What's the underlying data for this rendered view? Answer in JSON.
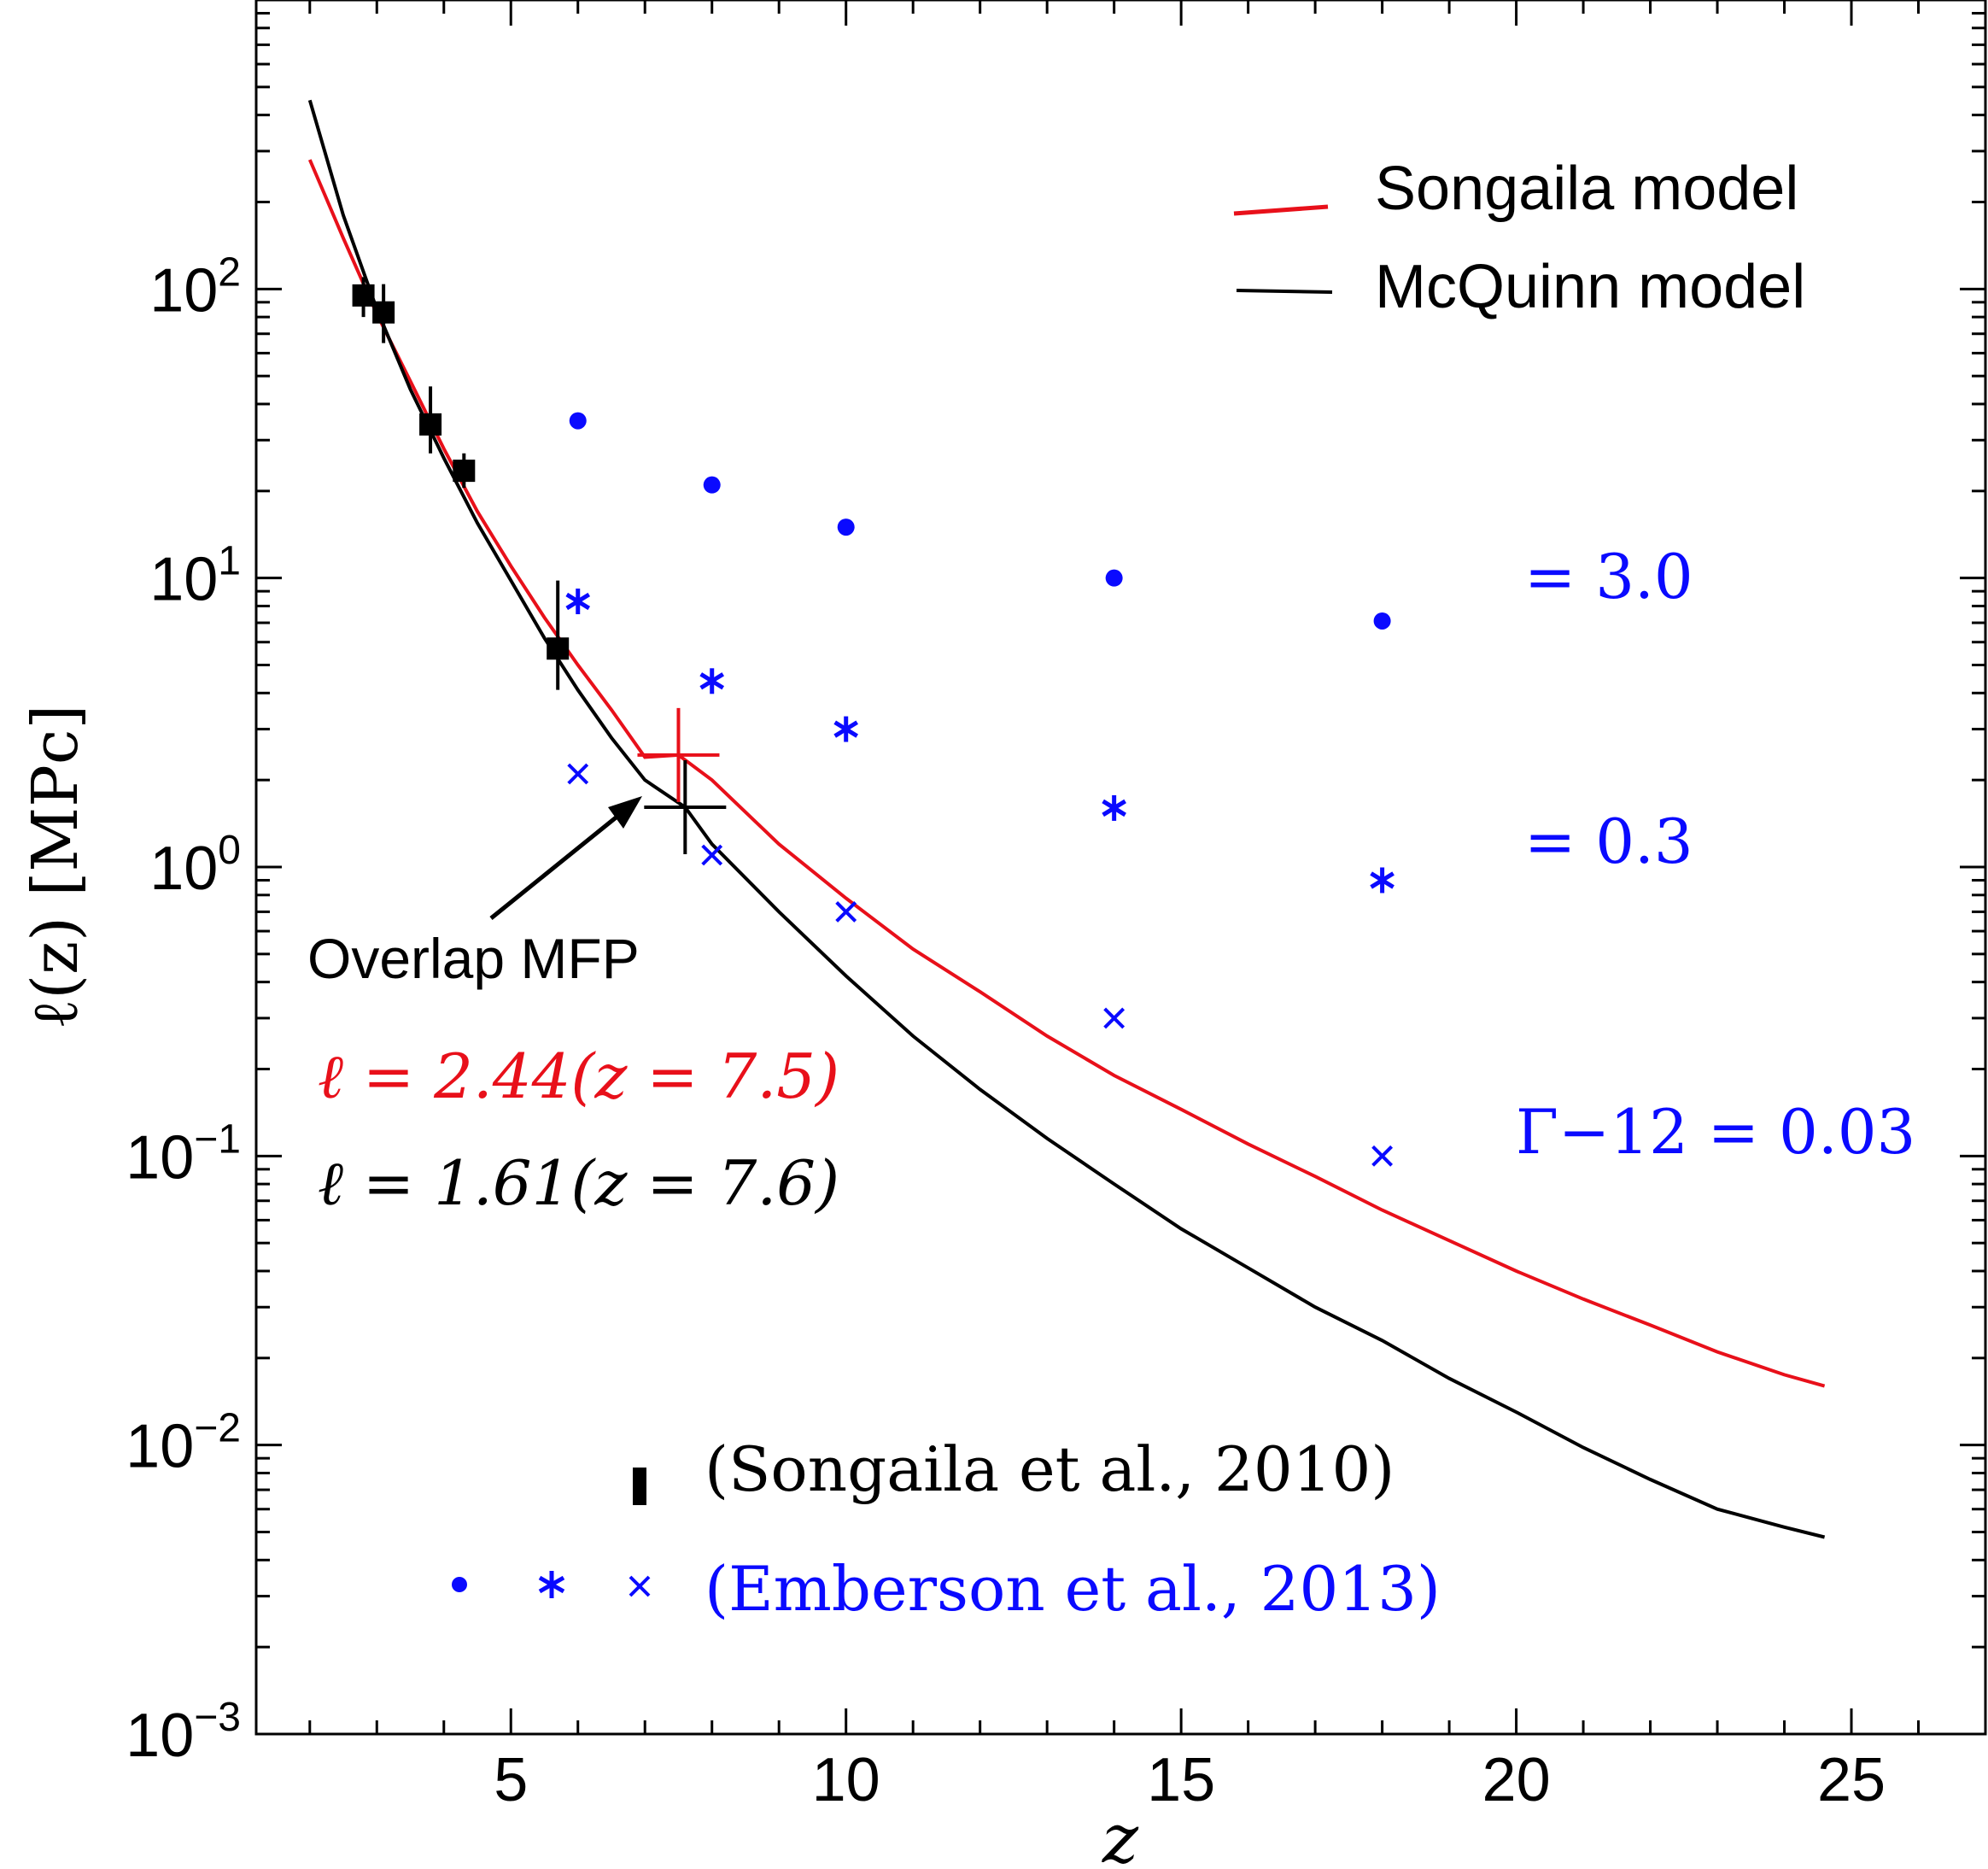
{
  "chart_data": {
    "type": "line",
    "xlabel": "z",
    "ylabel": "ℓ(z) [MPc]",
    "xlim": [
      1.2,
      27.0
    ],
    "ylim": [
      0.001,
      1000
    ],
    "yscale": "log",
    "xticks": [
      5,
      10,
      15,
      20,
      25
    ],
    "xtick_labels": [
      "5",
      "10",
      "15",
      "20",
      "25"
    ],
    "yticks": [
      0.001,
      0.01,
      0.1,
      1,
      10,
      100
    ],
    "ytick_labels": [
      {
        "base": "10",
        "exp": "−3"
      },
      {
        "base": "10",
        "exp": "−2"
      },
      {
        "base": "10",
        "exp": "−1"
      },
      {
        "base": "10",
        "exp": "0"
      },
      {
        "base": "10",
        "exp": "1"
      },
      {
        "base": "10",
        "exp": "2"
      }
    ],
    "series": [
      {
        "name": "Songaila model",
        "color": "#e8101a",
        "x": [
          2.0,
          2.5,
          3.0,
          3.5,
          4.0,
          4.5,
          5.0,
          5.5,
          6.0,
          6.5,
          7.0,
          7.5,
          8.0,
          9.0,
          10.0,
          11.0,
          12.0,
          13.0,
          14.0,
          15.0,
          16.0,
          17.0,
          18.0,
          19.0,
          20.0,
          21.0,
          22.0,
          23.0,
          24.0,
          24.6
        ],
        "y": [
          280,
          150,
          82,
          48,
          28,
          17,
          11,
          7.3,
          5.0,
          3.5,
          2.4,
          2.44,
          2.0,
          1.2,
          0.78,
          0.52,
          0.37,
          0.26,
          0.19,
          0.145,
          0.11,
          0.085,
          0.065,
          0.051,
          0.04,
          0.032,
          0.026,
          0.021,
          0.0175,
          0.016
        ]
      },
      {
        "name": "McQuinn model",
        "color": "#000000",
        "x": [
          2.0,
          2.5,
          3.0,
          3.5,
          4.0,
          4.5,
          5.0,
          5.5,
          6.0,
          6.5,
          7.0,
          7.6,
          8.0,
          9.0,
          10.0,
          11.0,
          12.0,
          13.0,
          14.0,
          15.0,
          16.0,
          17.0,
          18.0,
          19.0,
          20.0,
          21.0,
          22.0,
          23.0,
          24.0,
          24.6
        ],
        "y": [
          450,
          180,
          85,
          45,
          26,
          15.5,
          9.8,
          6.2,
          4.1,
          2.8,
          2.0,
          1.61,
          1.2,
          0.7,
          0.42,
          0.26,
          0.17,
          0.115,
          0.08,
          0.056,
          0.041,
          0.03,
          0.023,
          0.017,
          0.013,
          0.0098,
          0.0076,
          0.006,
          0.0052,
          0.0048
        ]
      }
    ],
    "songaila_points": {
      "label": "(Songaila et al., 2010)",
      "x": [
        2.8,
        3.1,
        3.8,
        4.3,
        5.7
      ],
      "y": [
        95,
        83,
        34,
        23.5,
        5.7
      ],
      "y_err_low": [
        80,
        65,
        27,
        20.5,
        4.1
      ],
      "y_err_high": [
        110,
        104,
        46,
        27,
        9.8
      ]
    },
    "emberson_points": {
      "label": "(Emberson et al., 2013)",
      "series": [
        {
          "gamma_label": "= 3.0",
          "marker": "dot",
          "x": [
            6,
            8,
            10,
            14,
            18
          ],
          "y": [
            35,
            21,
            15,
            10,
            7.1
          ]
        },
        {
          "gamma_label": "= 0.3",
          "marker": "asterisk",
          "x": [
            6,
            8,
            10,
            14,
            18
          ],
          "y": [
            8.3,
            4.4,
            3.0,
            1.6,
            0.9
          ]
        },
        {
          "gamma_label": "Γ−12 = 0.03",
          "marker": "x",
          "x": [
            6,
            8,
            10,
            14,
            18
          ],
          "y": [
            2.1,
            1.1,
            0.7,
            0.3,
            0.1
          ]
        }
      ]
    },
    "overlap_markers": [
      {
        "x": 7.5,
        "y": 2.44,
        "color": "#e8101a"
      },
      {
        "x": 7.6,
        "y": 1.61,
        "color": "#000000"
      }
    ],
    "annotations": {
      "overlap": "Overlap MFP",
      "red_value": "ℓ = 2.44(z = 7.5)",
      "black_value": "ℓ = 1.61(z = 7.6)"
    },
    "legend": {
      "position": "top-right",
      "entries": [
        {
          "label": "Songaila model",
          "color": "#e8101a"
        },
        {
          "label": "McQuinn model",
          "color": "#000000"
        }
      ]
    },
    "marker_color": "#0a0aff"
  }
}
